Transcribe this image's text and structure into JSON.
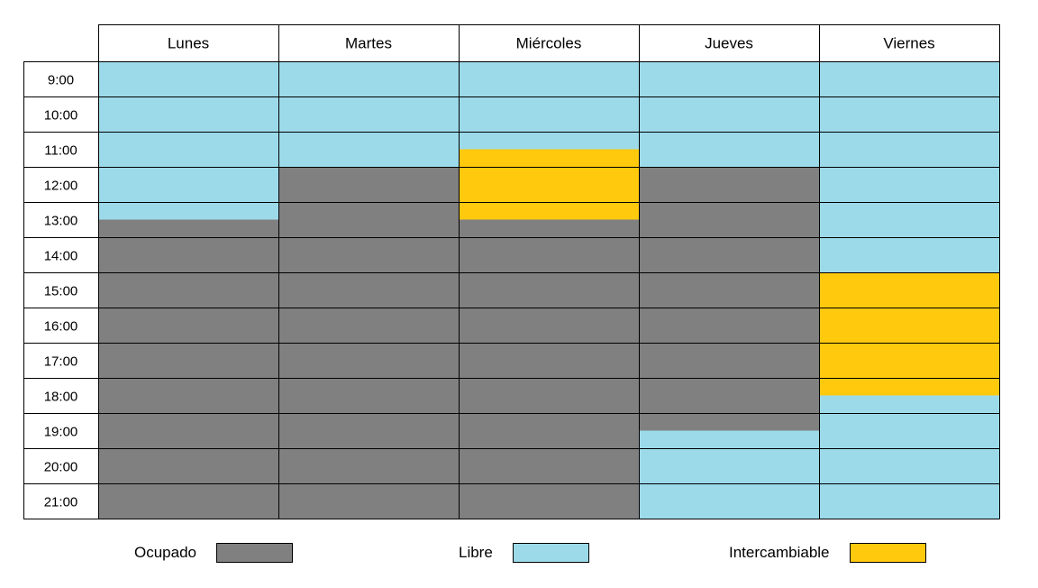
{
  "days": [
    "Lunes",
    "Martes",
    "Miércoles",
    "Jueves",
    "Viernes"
  ],
  "hours": [
    "9:00",
    "10:00",
    "11:00",
    "12:00",
    "13:00",
    "14:00",
    "15:00",
    "16:00",
    "17:00",
    "18:00",
    "19:00",
    "20:00",
    "21:00"
  ],
  "start_hour": 9,
  "colors": {
    "occupied": "#808080",
    "free": "#9cdaea",
    "swap": "#ffc90e"
  },
  "schedule": [
    {
      "day": "Lunes",
      "blocks": [
        {
          "status": "free",
          "from": "9:00",
          "to": "13:30"
        },
        {
          "status": "occupied",
          "from": "13:30",
          "to": "22:00"
        }
      ]
    },
    {
      "day": "Martes",
      "blocks": [
        {
          "status": "free",
          "from": "9:00",
          "to": "12:00"
        },
        {
          "status": "occupied",
          "from": "12:00",
          "to": "22:00"
        }
      ]
    },
    {
      "day": "Miércoles",
      "blocks": [
        {
          "status": "free",
          "from": "9:00",
          "to": "11:30"
        },
        {
          "status": "swap",
          "from": "11:30",
          "to": "13:30"
        },
        {
          "status": "occupied",
          "from": "13:30",
          "to": "22:00"
        }
      ]
    },
    {
      "day": "Jueves",
      "blocks": [
        {
          "status": "free",
          "from": "9:00",
          "to": "12:00"
        },
        {
          "status": "occupied",
          "from": "12:00",
          "to": "19:30"
        },
        {
          "status": "free",
          "from": "19:30",
          "to": "22:00"
        }
      ]
    },
    {
      "day": "Viernes",
      "blocks": [
        {
          "status": "free",
          "from": "9:00",
          "to": "15:00"
        },
        {
          "status": "swap",
          "from": "15:00",
          "to": "18:30"
        },
        {
          "status": "free",
          "from": "18:30",
          "to": "22:00"
        }
      ]
    }
  ],
  "legend": [
    {
      "key": "occupied",
      "label": "Ocupado"
    },
    {
      "key": "free",
      "label": "Libre"
    },
    {
      "key": "swap",
      "label": "Intercambiable"
    }
  ]
}
